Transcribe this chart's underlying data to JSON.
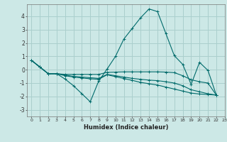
{
  "xlabel": "Humidex (Indice chaleur)",
  "ylabel": "",
  "background_color": "#cce8e6",
  "grid_color": "#aacfcd",
  "line_color": "#006b6b",
  "xlim": [
    -0.5,
    23
  ],
  "ylim": [
    -3.5,
    4.9
  ],
  "yticks": [
    -3,
    -2,
    -1,
    0,
    1,
    2,
    3,
    4
  ],
  "xticks": [
    0,
    1,
    2,
    3,
    4,
    5,
    6,
    7,
    8,
    9,
    10,
    11,
    12,
    13,
    14,
    15,
    16,
    17,
    18,
    19,
    20,
    21,
    22,
    23
  ],
  "series": [
    [
      0.7,
      0.2,
      -0.3,
      -0.3,
      -0.7,
      -1.2,
      -1.8,
      -2.4,
      -0.85,
      0.05,
      1.0,
      2.3,
      3.1,
      3.9,
      4.55,
      4.35,
      2.7,
      1.05,
      0.4,
      -1.1,
      0.55,
      -0.05,
      -1.9
    ],
    [
      0.7,
      0.2,
      -0.3,
      -0.3,
      -0.35,
      -0.35,
      -0.35,
      -0.35,
      -0.35,
      -0.2,
      -0.18,
      -0.16,
      -0.16,
      -0.16,
      -0.16,
      -0.16,
      -0.18,
      -0.22,
      -0.45,
      -0.75,
      -0.9,
      -1.0,
      -1.9
    ],
    [
      0.7,
      0.2,
      -0.3,
      -0.3,
      -0.4,
      -0.5,
      -0.55,
      -0.6,
      -0.65,
      -0.35,
      -0.45,
      -0.55,
      -0.65,
      -0.72,
      -0.78,
      -0.82,
      -0.9,
      -1.0,
      -1.2,
      -1.5,
      -1.65,
      -1.8,
      -1.9
    ],
    [
      0.7,
      0.2,
      -0.3,
      -0.3,
      -0.45,
      -0.55,
      -0.62,
      -0.68,
      -0.72,
      -0.38,
      -0.52,
      -0.66,
      -0.8,
      -0.95,
      -1.05,
      -1.15,
      -1.3,
      -1.45,
      -1.6,
      -1.75,
      -1.82,
      -1.86,
      -1.9
    ]
  ]
}
